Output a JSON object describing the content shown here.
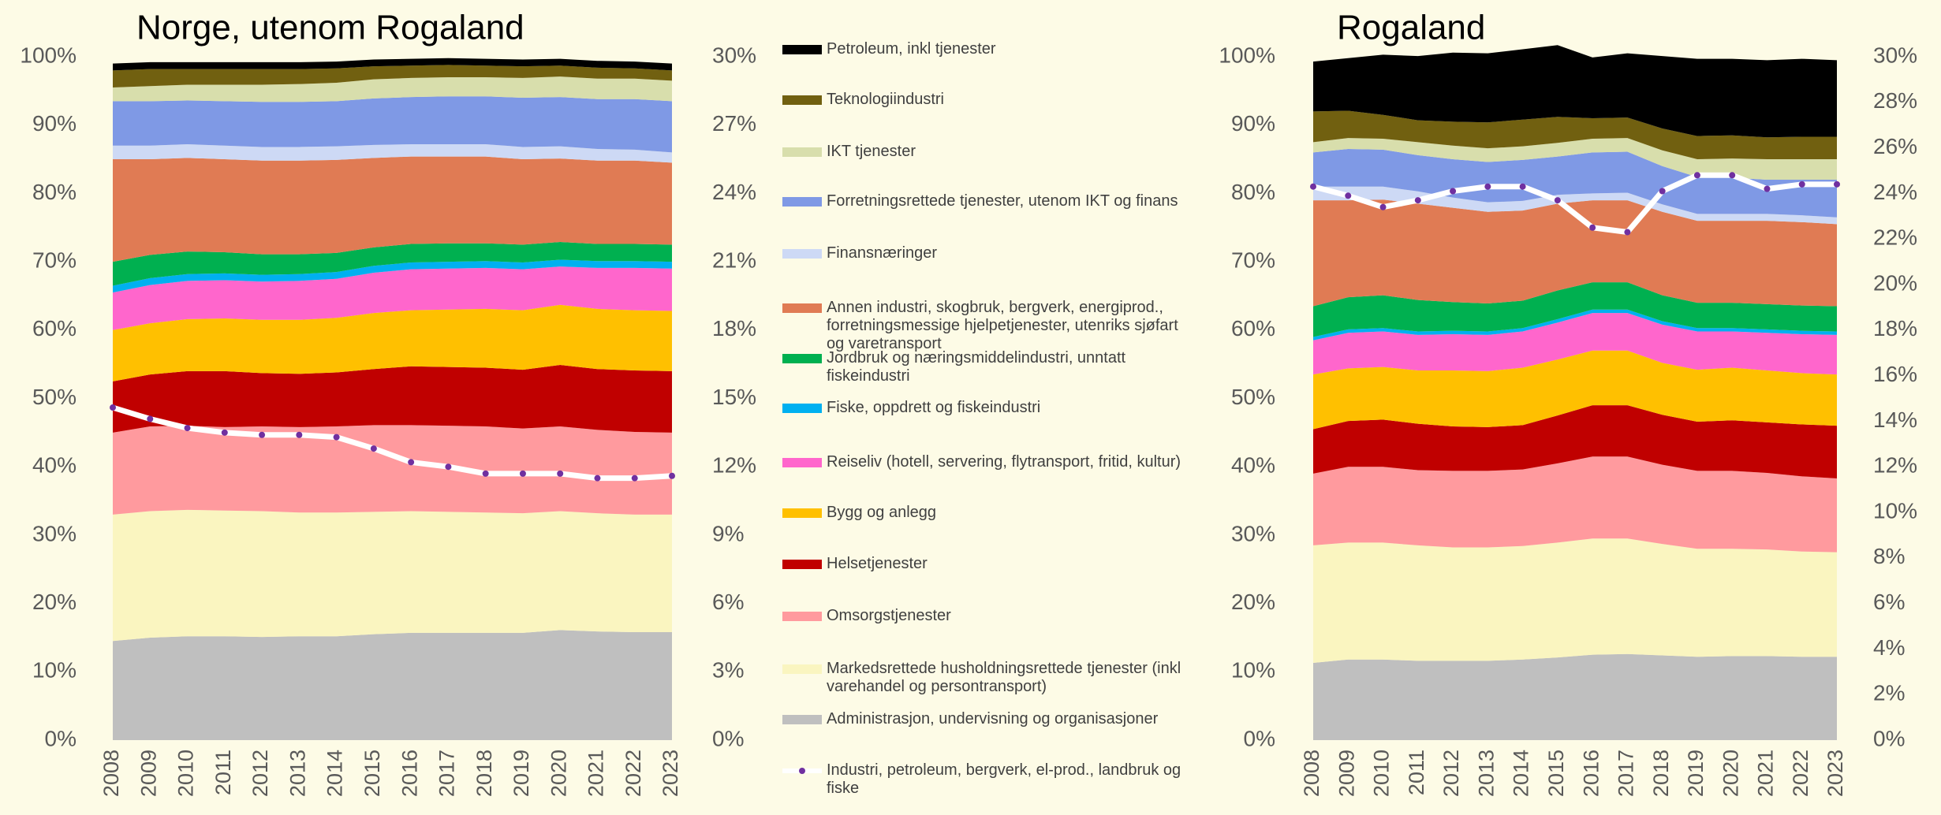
{
  "chart_data": [
    {
      "type": "stacked_area",
      "title": "Norge, utenom Rogaland",
      "categories": [
        "2008",
        "2009",
        "2010",
        "2011",
        "2012",
        "2013",
        "2014",
        "2015",
        "2016",
        "2017",
        "2018",
        "2019",
        "2020",
        "2021",
        "2022",
        "2023"
      ],
      "ylim": [
        0,
        100
      ],
      "yticks": [
        {
          "value": 0,
          "label": "0%"
        },
        {
          "value": 10,
          "label": "10%"
        },
        {
          "value": 20,
          "label": "20%"
        },
        {
          "value": 30,
          "label": "30%"
        },
        {
          "value": 40,
          "label": "40%"
        },
        {
          "value": 50,
          "label": "50%"
        },
        {
          "value": 60,
          "label": "60%"
        },
        {
          "value": 70,
          "label": "70%"
        },
        {
          "value": 80,
          "label": "80%"
        },
        {
          "value": 90,
          "label": "90%"
        },
        {
          "value": 100,
          "label": "100%"
        }
      ],
      "y2lim": [
        0,
        30
      ],
      "y2ticks": [
        {
          "value": 0,
          "label": "0%"
        },
        {
          "value": 3,
          "label": "3%"
        },
        {
          "value": 6,
          "label": "6%"
        },
        {
          "value": 9,
          "label": "9%"
        },
        {
          "value": 12,
          "label": "12%"
        },
        {
          "value": 15,
          "label": "15%"
        },
        {
          "value": 18,
          "label": "18%"
        },
        {
          "value": 21,
          "label": "21%"
        },
        {
          "value": 24,
          "label": "24%"
        },
        {
          "value": 27,
          "label": "27%"
        },
        {
          "value": 30,
          "label": "30%"
        }
      ],
      "series": [
        {
          "name": "Administrasjon, undervisning og organisasjoner",
          "color": "#bfbfbf",
          "values": [
            14.5,
            15.0,
            15.2,
            15.2,
            15.1,
            15.2,
            15.2,
            15.5,
            15.7,
            15.7,
            15.7,
            15.7,
            16.1,
            15.9,
            15.8,
            15.8
          ]
        },
        {
          "name": "Markedsrettede husholdningsrettede tjenester (inkl varehandel og persontransport)",
          "color": "#faf5c0",
          "values": [
            18.5,
            18.5,
            18.5,
            18.4,
            18.4,
            18.1,
            18.1,
            17.9,
            17.8,
            17.7,
            17.6,
            17.5,
            17.4,
            17.3,
            17.2,
            17.2
          ]
        },
        {
          "name": "Omsorgstjenester",
          "color": "#ff9a9e",
          "values": [
            12.0,
            12.4,
            12.3,
            12.2,
            12.4,
            12.5,
            12.6,
            12.7,
            12.6,
            12.6,
            12.6,
            12.4,
            12.4,
            12.2,
            12.1,
            12.0
          ]
        },
        {
          "name": "Helsetjenester",
          "color": "#c00000",
          "values": [
            7.5,
            7.6,
            8.0,
            8.2,
            7.8,
            7.8,
            7.9,
            8.2,
            8.6,
            8.6,
            8.6,
            8.6,
            9.0,
            8.9,
            9.0,
            9.0
          ]
        },
        {
          "name": "Bygg og anlegg",
          "color": "#ffc000",
          "values": [
            7.5,
            7.5,
            7.6,
            7.7,
            7.8,
            7.9,
            8.0,
            8.2,
            8.2,
            8.4,
            8.6,
            8.7,
            8.8,
            8.8,
            8.8,
            8.8
          ]
        },
        {
          "name": "Reiseliv (hotell, servering, flytransport, fritid, kultur)",
          "color": "#ff66cc",
          "values": [
            5.5,
            5.6,
            5.6,
            5.6,
            5.6,
            5.7,
            5.7,
            5.9,
            6.0,
            6.0,
            6.0,
            6.0,
            5.6,
            6.0,
            6.2,
            6.2
          ]
        },
        {
          "name": "Fiske, oppdrett og fiskeindustri",
          "color": "#00b0f0",
          "values": [
            1.0,
            1.0,
            1.0,
            1.0,
            1.0,
            1.0,
            1.0,
            1.0,
            1.0,
            1.0,
            1.0,
            1.0,
            1.0,
            1.0,
            1.0,
            1.0
          ]
        },
        {
          "name": "Jordbruk og næringsmiddelindustri, unntatt fiskeindustri",
          "color": "#00b050",
          "values": [
            3.5,
            3.4,
            3.3,
            3.1,
            3.0,
            2.9,
            2.8,
            2.7,
            2.7,
            2.7,
            2.6,
            2.6,
            2.6,
            2.5,
            2.5,
            2.5
          ]
        },
        {
          "name": "Annen industri, skogbruk, bergverk, energiprod., forretningsmessige hjelpetjenester, utenriks sjøfart og varetransport",
          "color": "#e07b54",
          "values": [
            15.0,
            14.0,
            13.7,
            13.6,
            13.7,
            13.7,
            13.6,
            13.1,
            12.8,
            12.7,
            12.7,
            12.5,
            12.2,
            12.2,
            12.2,
            12.0
          ]
        },
        {
          "name": "Finansnæringer",
          "color": "#cdd9f5",
          "values": [
            2.0,
            2.0,
            2.0,
            2.0,
            2.0,
            2.0,
            2.0,
            1.9,
            1.8,
            1.8,
            1.8,
            1.8,
            1.8,
            1.7,
            1.6,
            1.5
          ]
        },
        {
          "name": "Forretningsrettede tjenester, utenom IKT og finans",
          "color": "#7f99e5",
          "values": [
            6.5,
            6.5,
            6.4,
            6.5,
            6.6,
            6.6,
            6.6,
            6.8,
            6.9,
            7.0,
            7.0,
            7.2,
            7.2,
            7.3,
            7.4,
            7.5
          ]
        },
        {
          "name": "IKT tjenester",
          "color": "#d8deac",
          "values": [
            2.0,
            2.2,
            2.3,
            2.4,
            2.5,
            2.6,
            2.7,
            2.8,
            2.8,
            2.8,
            2.8,
            2.9,
            3.0,
            3.0,
            3.0,
            3.0
          ]
        },
        {
          "name": "Teknologiindustri",
          "color": "#716010",
          "values": [
            2.5,
            2.5,
            2.3,
            2.3,
            2.3,
            2.2,
            2.1,
            1.9,
            1.8,
            1.8,
            1.7,
            1.7,
            1.6,
            1.6,
            1.5,
            1.5
          ]
        },
        {
          "name": "Petroleum, inkl tjenester",
          "color": "#000000",
          "values": [
            1.0,
            1.0,
            1.0,
            1.0,
            1.0,
            1.0,
            1.0,
            1.0,
            1.0,
            1.0,
            1.0,
            1.0,
            1.0,
            1.0,
            1.0,
            1.0
          ]
        },
        {
          "name": "Industri, petroleum, bergverk, el-prod., landbruk og fiske",
          "type": "line",
          "axis": "y2",
          "color": "#ffffff",
          "marker_color": "#7030a0",
          "values": [
            14.6,
            14.1,
            13.7,
            13.5,
            13.4,
            13.4,
            13.3,
            12.8,
            12.2,
            12.0,
            11.7,
            11.7,
            11.7,
            11.5,
            11.5,
            11.6
          ]
        }
      ]
    },
    {
      "type": "stacked_area",
      "title": "Rogaland",
      "categories": [
        "2008",
        "2009",
        "2010",
        "2011",
        "2012",
        "2013",
        "2014",
        "2015",
        "2016",
        "2017",
        "2018",
        "2019",
        "2020",
        "2021",
        "2022",
        "2023"
      ],
      "ylim": [
        0,
        100
      ],
      "yticks": [
        {
          "value": 0,
          "label": "0%"
        },
        {
          "value": 10,
          "label": "10%"
        },
        {
          "value": 20,
          "label": "20%"
        },
        {
          "value": 30,
          "label": "30%"
        },
        {
          "value": 40,
          "label": "40%"
        },
        {
          "value": 50,
          "label": "50%"
        },
        {
          "value": 60,
          "label": "60%"
        },
        {
          "value": 70,
          "label": "70%"
        },
        {
          "value": 80,
          "label": "80%"
        },
        {
          "value": 90,
          "label": "90%"
        },
        {
          "value": 100,
          "label": "100%"
        }
      ],
      "y2lim": [
        0,
        30
      ],
      "y2ticks": [
        {
          "value": 0,
          "label": "0%"
        },
        {
          "value": 2,
          "label": "2%"
        },
        {
          "value": 4,
          "label": "4%"
        },
        {
          "value": 6,
          "label": "6%"
        },
        {
          "value": 8,
          "label": "8%"
        },
        {
          "value": 10,
          "label": "10%"
        },
        {
          "value": 12,
          "label": "12%"
        },
        {
          "value": 14,
          "label": "14%"
        },
        {
          "value": 16,
          "label": "16%"
        },
        {
          "value": 18,
          "label": "18%"
        },
        {
          "value": 20,
          "label": "20%"
        },
        {
          "value": 22,
          "label": "22%"
        },
        {
          "value": 24,
          "label": "24%"
        },
        {
          "value": 26,
          "label": "26%"
        },
        {
          "value": 28,
          "label": "28%"
        },
        {
          "value": 30,
          "label": "30%"
        }
      ],
      "series": [
        {
          "color": "#bfbfbf",
          "values": [
            11.3,
            11.8,
            11.8,
            11.6,
            11.6,
            11.6,
            11.8,
            12.1,
            12.5,
            12.6,
            12.4,
            12.2,
            12.3,
            12.3,
            12.2,
            12.2
          ]
        },
        {
          "color": "#faf5c0",
          "values": [
            17.2,
            17.1,
            17.1,
            16.9,
            16.6,
            16.6,
            16.6,
            16.8,
            17.0,
            16.9,
            16.3,
            15.8,
            15.7,
            15.6,
            15.4,
            15.3
          ]
        },
        {
          "color": "#ff9a9e",
          "values": [
            10.5,
            11.1,
            11.1,
            11.0,
            11.2,
            11.2,
            11.2,
            11.6,
            12.0,
            12.0,
            11.6,
            11.4,
            11.4,
            11.2,
            11.0,
            10.8
          ]
        },
        {
          "color": "#c00000",
          "values": [
            6.5,
            6.7,
            6.9,
            6.8,
            6.5,
            6.4,
            6.5,
            7.0,
            7.5,
            7.5,
            7.3,
            7.2,
            7.4,
            7.4,
            7.6,
            7.7
          ]
        },
        {
          "color": "#ffc000",
          "values": [
            8.0,
            7.7,
            7.7,
            7.8,
            8.2,
            8.2,
            8.4,
            8.2,
            8.0,
            8.0,
            7.6,
            7.6,
            7.7,
            7.6,
            7.5,
            7.5
          ]
        },
        {
          "color": "#ff66cc",
          "values": [
            5.0,
            5.2,
            5.2,
            5.2,
            5.3,
            5.3,
            5.3,
            5.4,
            5.5,
            5.5,
            5.6,
            5.6,
            5.3,
            5.5,
            5.7,
            5.8
          ]
        },
        {
          "color": "#00b0f0",
          "values": [
            0.5,
            0.5,
            0.5,
            0.5,
            0.5,
            0.5,
            0.5,
            0.5,
            0.5,
            0.5,
            0.5,
            0.5,
            0.5,
            0.5,
            0.5,
            0.5
          ]
        },
        {
          "color": "#00b050",
          "values": [
            4.5,
            4.7,
            4.8,
            4.6,
            4.2,
            4.1,
            4.0,
            4.2,
            4.0,
            4.0,
            3.8,
            3.7,
            3.7,
            3.7,
            3.7,
            3.7
          ]
        },
        {
          "color": "#e07b54",
          "values": [
            15.5,
            14.2,
            14.0,
            14.1,
            13.8,
            13.4,
            13.2,
            12.7,
            12.0,
            12.0,
            12.2,
            12.0,
            12.0,
            12.2,
            12.2,
            12.0
          ]
        },
        {
          "color": "#cdd9f5",
          "values": [
            2.0,
            2.0,
            1.9,
            1.8,
            1.5,
            1.4,
            1.4,
            1.3,
            1.0,
            1.1,
            1.1,
            1.0,
            1.0,
            1.0,
            1.0,
            1.0
          ]
        },
        {
          "color": "#7f99e5",
          "values": [
            5.0,
            5.5,
            5.4,
            5.3,
            5.6,
            5.9,
            6.0,
            5.6,
            6.0,
            6.0,
            5.6,
            5.4,
            5.3,
            5.0,
            5.2,
            5.5
          ]
        },
        {
          "color": "#d8deac",
          "values": [
            1.5,
            1.6,
            1.6,
            1.9,
            2.0,
            2.0,
            2.0,
            2.0,
            2.0,
            2.0,
            2.3,
            2.6,
            2.8,
            3.0,
            3.0,
            3.0
          ]
        },
        {
          "color": "#716010",
          "values": [
            4.5,
            4.0,
            3.5,
            3.2,
            3.5,
            3.8,
            3.9,
            3.8,
            3.0,
            3.0,
            3.2,
            3.4,
            3.4,
            3.2,
            3.3,
            3.3
          ]
        },
        {
          "color": "#000000",
          "values": [
            7.3,
            7.7,
            8.8,
            9.4,
            10.1,
            10.1,
            10.3,
            10.5,
            8.9,
            9.4,
            10.6,
            11.3,
            11.2,
            11.3,
            11.4,
            11.2
          ]
        },
        {
          "type": "line",
          "axis": "y2",
          "color": "#ffffff",
          "marker_color": "#7030a0",
          "values": [
            24.3,
            23.9,
            23.4,
            23.7,
            24.1,
            24.3,
            24.3,
            23.7,
            22.5,
            22.3,
            24.1,
            24.8,
            24.8,
            24.2,
            24.4,
            24.4
          ]
        }
      ]
    }
  ]
}
